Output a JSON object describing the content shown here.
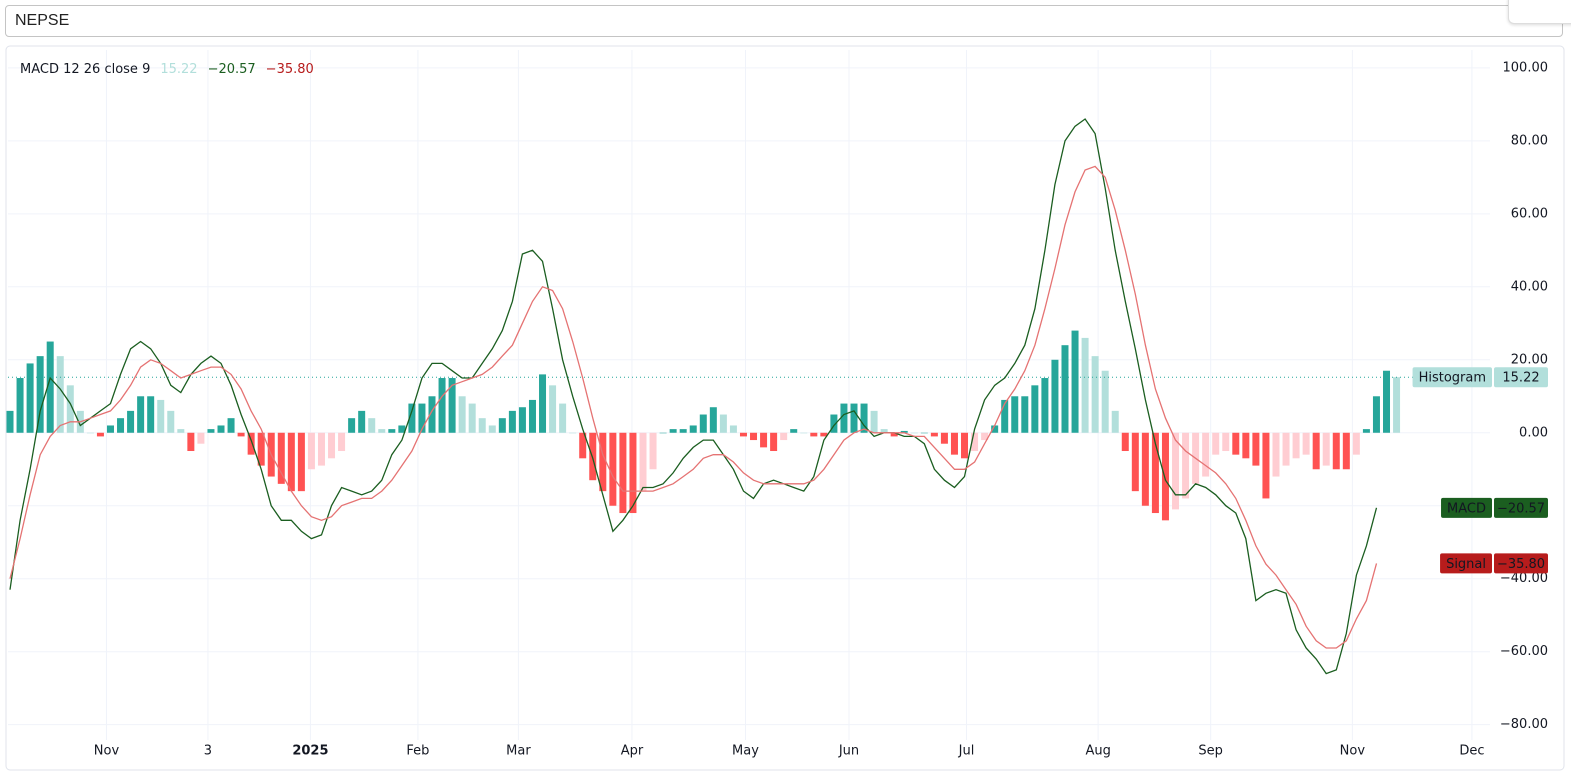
{
  "search": "NEPSE",
  "chart_data": {
    "type": "macd",
    "indicator": "MACD 12 26 close 9",
    "series": [
      {
        "name": "Histogram",
        "type": "bar",
        "histogram_colors": [
          "#26a69a",
          "#b2dfdb",
          "#ff5252",
          "#ffcdd2"
        ],
        "label_color": "#b2dfdb",
        "label_text_color": "#131722",
        "last_label": "15.22",
        "values": [
          6,
          15,
          19,
          21,
          25,
          21,
          13,
          6,
          0,
          -1,
          2,
          4,
          6,
          10,
          10,
          9,
          6,
          1,
          -5,
          -3,
          1,
          2,
          4,
          -1,
          -6,
          -9,
          -12,
          -14,
          -16,
          -16,
          -10,
          -9,
          -7,
          -5,
          4,
          6,
          4,
          1,
          1,
          2,
          8,
          8,
          10,
          15,
          15,
          10,
          8,
          4,
          2,
          4,
          6,
          7,
          9,
          16,
          13,
          8,
          0,
          -7,
          -13,
          -16,
          -20,
          -22,
          -22,
          -16,
          -10,
          0,
          1,
          1,
          2,
          5,
          7,
          5,
          2,
          -1,
          -2,
          -4,
          -5,
          -2,
          1,
          0,
          -1,
          -1,
          5,
          8,
          8,
          8,
          6,
          1,
          -1,
          0.5,
          0,
          0,
          -1,
          -3,
          -6,
          -7,
          -5,
          -2,
          2,
          9,
          10,
          10,
          13,
          15,
          20,
          24,
          28,
          26,
          21,
          17,
          6,
          -5,
          -16,
          -20,
          -22,
          -24,
          -21,
          -18,
          -14,
          -12,
          -6,
          -5,
          -6,
          -7,
          -9,
          -18,
          -12,
          -9,
          -7,
          -6,
          -10,
          -9,
          -10,
          -10,
          -6,
          1,
          10,
          17,
          15.22
        ]
      },
      {
        "name": "MACD",
        "type": "line",
        "color": "#1b5e20",
        "label_color": "#1b5e20",
        "label_text_color": "#ffffff",
        "last_label": "−20.57",
        "values": [
          -43,
          -24,
          -10,
          6,
          15,
          12,
          8,
          2,
          4,
          6,
          8,
          16,
          23,
          25,
          23,
          19,
          13,
          11,
          16,
          19,
          21,
          19,
          13,
          5,
          -2,
          -10,
          -20,
          -24,
          -24,
          -27,
          -29,
          -28,
          -20,
          -15,
          -16,
          -17,
          -16,
          -13,
          -6,
          -2,
          6,
          15,
          19,
          19,
          17,
          15,
          15,
          19,
          23,
          28,
          36,
          49,
          50,
          47,
          34,
          20,
          10,
          1,
          -7,
          -17,
          -27,
          -24,
          -20,
          -15,
          -15,
          -14,
          -11,
          -7,
          -4,
          -2,
          -2,
          -6,
          -10,
          -16,
          -18,
          -14,
          -13,
          -14,
          -15,
          -16,
          -12,
          -2,
          2,
          5,
          6,
          2,
          -1,
          0,
          0,
          -1,
          -1,
          -3,
          -10,
          -13,
          -15,
          -12,
          1,
          9,
          13,
          15,
          19,
          24,
          34,
          50,
          68,
          80,
          84,
          86,
          82,
          67,
          50,
          36,
          23,
          9,
          -3,
          -13,
          -17,
          -17,
          -14,
          -15,
          -17,
          -20,
          -22,
          -29,
          -46,
          -44,
          -43,
          -44,
          -54,
          -59,
          -62,
          -66,
          -65,
          -55,
          -39,
          -31,
          -20.57
        ]
      },
      {
        "name": "Signal",
        "type": "line",
        "color": "#e57373",
        "label_color": "#b71c1c",
        "label_text_color": "#ffffff",
        "last_label": "−35.80",
        "values": [
          -40,
          -29,
          -17,
          -6,
          -1,
          2,
          3,
          3,
          4,
          5,
          6,
          9,
          13,
          18,
          20,
          19,
          17,
          15,
          16,
          17,
          18,
          18,
          16,
          12,
          6,
          1,
          -6,
          -11,
          -16,
          -20,
          -23,
          -24,
          -23,
          -20,
          -19,
          -18,
          -18,
          -16,
          -13,
          -9,
          -5,
          1,
          6,
          10,
          13,
          14,
          15,
          16,
          18,
          21,
          24,
          30,
          36,
          40,
          39,
          34,
          25,
          15,
          4,
          -6,
          -12,
          -16,
          -16,
          -16,
          -16,
          -15,
          -14,
          -12,
          -10,
          -7,
          -6,
          -6,
          -8,
          -11,
          -13,
          -14,
          -14,
          -14,
          -14,
          -14,
          -13,
          -10,
          -6,
          -2,
          0,
          1,
          0,
          0,
          0,
          0,
          -1,
          -1,
          -4,
          -7,
          -10,
          -10,
          -8,
          -3,
          2,
          8,
          12,
          17,
          24,
          34,
          45,
          57,
          66,
          72,
          73,
          70,
          61,
          50,
          38,
          24,
          12,
          4,
          -2,
          -5,
          -7,
          -9,
          -11,
          -14,
          -18,
          -24,
          -31,
          -36,
          -39,
          -43,
          -47,
          -53,
          -57,
          -59,
          -59,
          -57,
          -51,
          -46,
          -35.8
        ]
      }
    ],
    "xlim": [
      -0.2,
      147.3
    ],
    "xticks": [
      {
        "value": 9.6,
        "label": "Nov"
      },
      {
        "value": 19.7,
        "label": "3"
      },
      {
        "value": 29.9,
        "label": "2025",
        "bold": true
      },
      {
        "value": 40.6,
        "label": "Feb"
      },
      {
        "value": 50.6,
        "label": "Mar"
      },
      {
        "value": 61.9,
        "label": "Apr"
      },
      {
        "value": 73.2,
        "label": "May"
      },
      {
        "value": 83.5,
        "label": "Jun"
      },
      {
        "value": 95.2,
        "label": "Jul"
      },
      {
        "value": 108.3,
        "label": "Aug"
      },
      {
        "value": 119.5,
        "label": "Sep"
      },
      {
        "value": 133.6,
        "label": "Nov"
      },
      {
        "value": 145.5,
        "label": "Dec"
      }
    ],
    "ylim": [
      -84.2,
      104.9
    ],
    "yticks": [
      {
        "value": 100,
        "label": "100.00"
      },
      {
        "value": 80,
        "label": "80.00"
      },
      {
        "value": 60,
        "label": "60.00"
      },
      {
        "value": 40,
        "label": "40.00"
      },
      {
        "value": 20,
        "label": "20.00"
      },
      {
        "value": 0,
        "label": "0.00"
      },
      {
        "value": -20,
        "label": "−20.00"
      },
      {
        "value": -40,
        "label": "−40.00"
      },
      {
        "value": -60,
        "label": "−60.00"
      },
      {
        "value": -80,
        "label": "−80.00"
      }
    ],
    "grid": true
  }
}
